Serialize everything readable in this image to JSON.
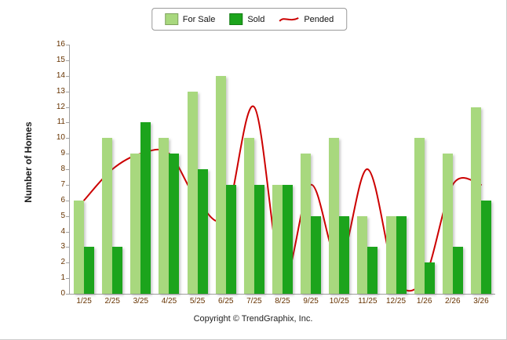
{
  "footer": "Copyright © TrendGraphix, Inc.",
  "chart_data": {
    "type": "bar+line combo",
    "title": "",
    "xlabel": "",
    "ylabel": "Number of Homes",
    "categories": [
      "1/25",
      "2/25",
      "3/25",
      "4/25",
      "5/25",
      "6/25",
      "7/25",
      "8/25",
      "9/25",
      "10/25",
      "11/25",
      "12/25",
      "1/26",
      "2/26",
      "3/26"
    ],
    "series": [
      {
        "name": "For Sale",
        "type": "bar",
        "color": "#A8D87E",
        "values": [
          6,
          10,
          9,
          10,
          13,
          14,
          10,
          7,
          9,
          10,
          5,
          5,
          10,
          9,
          12
        ]
      },
      {
        "name": "Sold",
        "type": "bar",
        "color": "#1CA41C",
        "values": [
          3,
          3,
          11,
          9,
          8,
          7,
          7,
          7,
          5,
          5,
          3,
          5,
          2,
          3,
          6
        ]
      },
      {
        "name": "Pended",
        "type": "line",
        "color": "#CC0000",
        "values": [
          6,
          8,
          9,
          9,
          6,
          5,
          12,
          1,
          7,
          2,
          8,
          1,
          1,
          7,
          7
        ]
      }
    ],
    "ylim": [
      0,
      16
    ],
    "yticks": [
      0,
      1,
      2,
      3,
      4,
      5,
      6,
      7,
      8,
      9,
      10,
      11,
      12,
      13,
      14,
      15,
      16
    ],
    "grid": false,
    "legend_position": "top-center"
  }
}
